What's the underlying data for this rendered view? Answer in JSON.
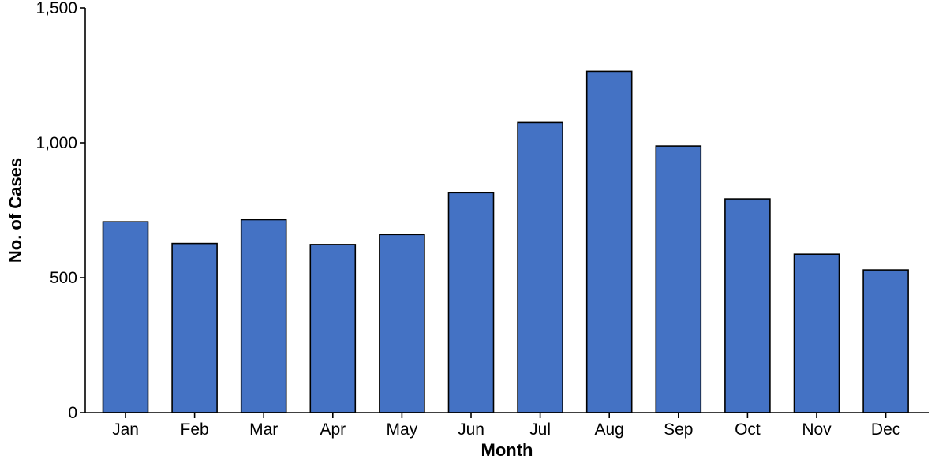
{
  "chart_data": {
    "type": "bar",
    "title": "",
    "xlabel": "Month",
    "ylabel": "No. of Cases",
    "categories": [
      "Jan",
      "Feb",
      "Mar",
      "Apr",
      "May",
      "Jun",
      "Jul",
      "Aug",
      "Sep",
      "Oct",
      "Nov",
      "Dec"
    ],
    "values": [
      707,
      627,
      715,
      623,
      660,
      815,
      1075,
      1265,
      988,
      792,
      587,
      529
    ],
    "ylim": [
      0,
      1500
    ],
    "yticks": [
      0,
      500,
      1000,
      1500
    ],
    "ytick_labels": [
      "0",
      "500",
      "1,000",
      "1,500"
    ],
    "grid": false,
    "bar_color": "#4472C4"
  }
}
